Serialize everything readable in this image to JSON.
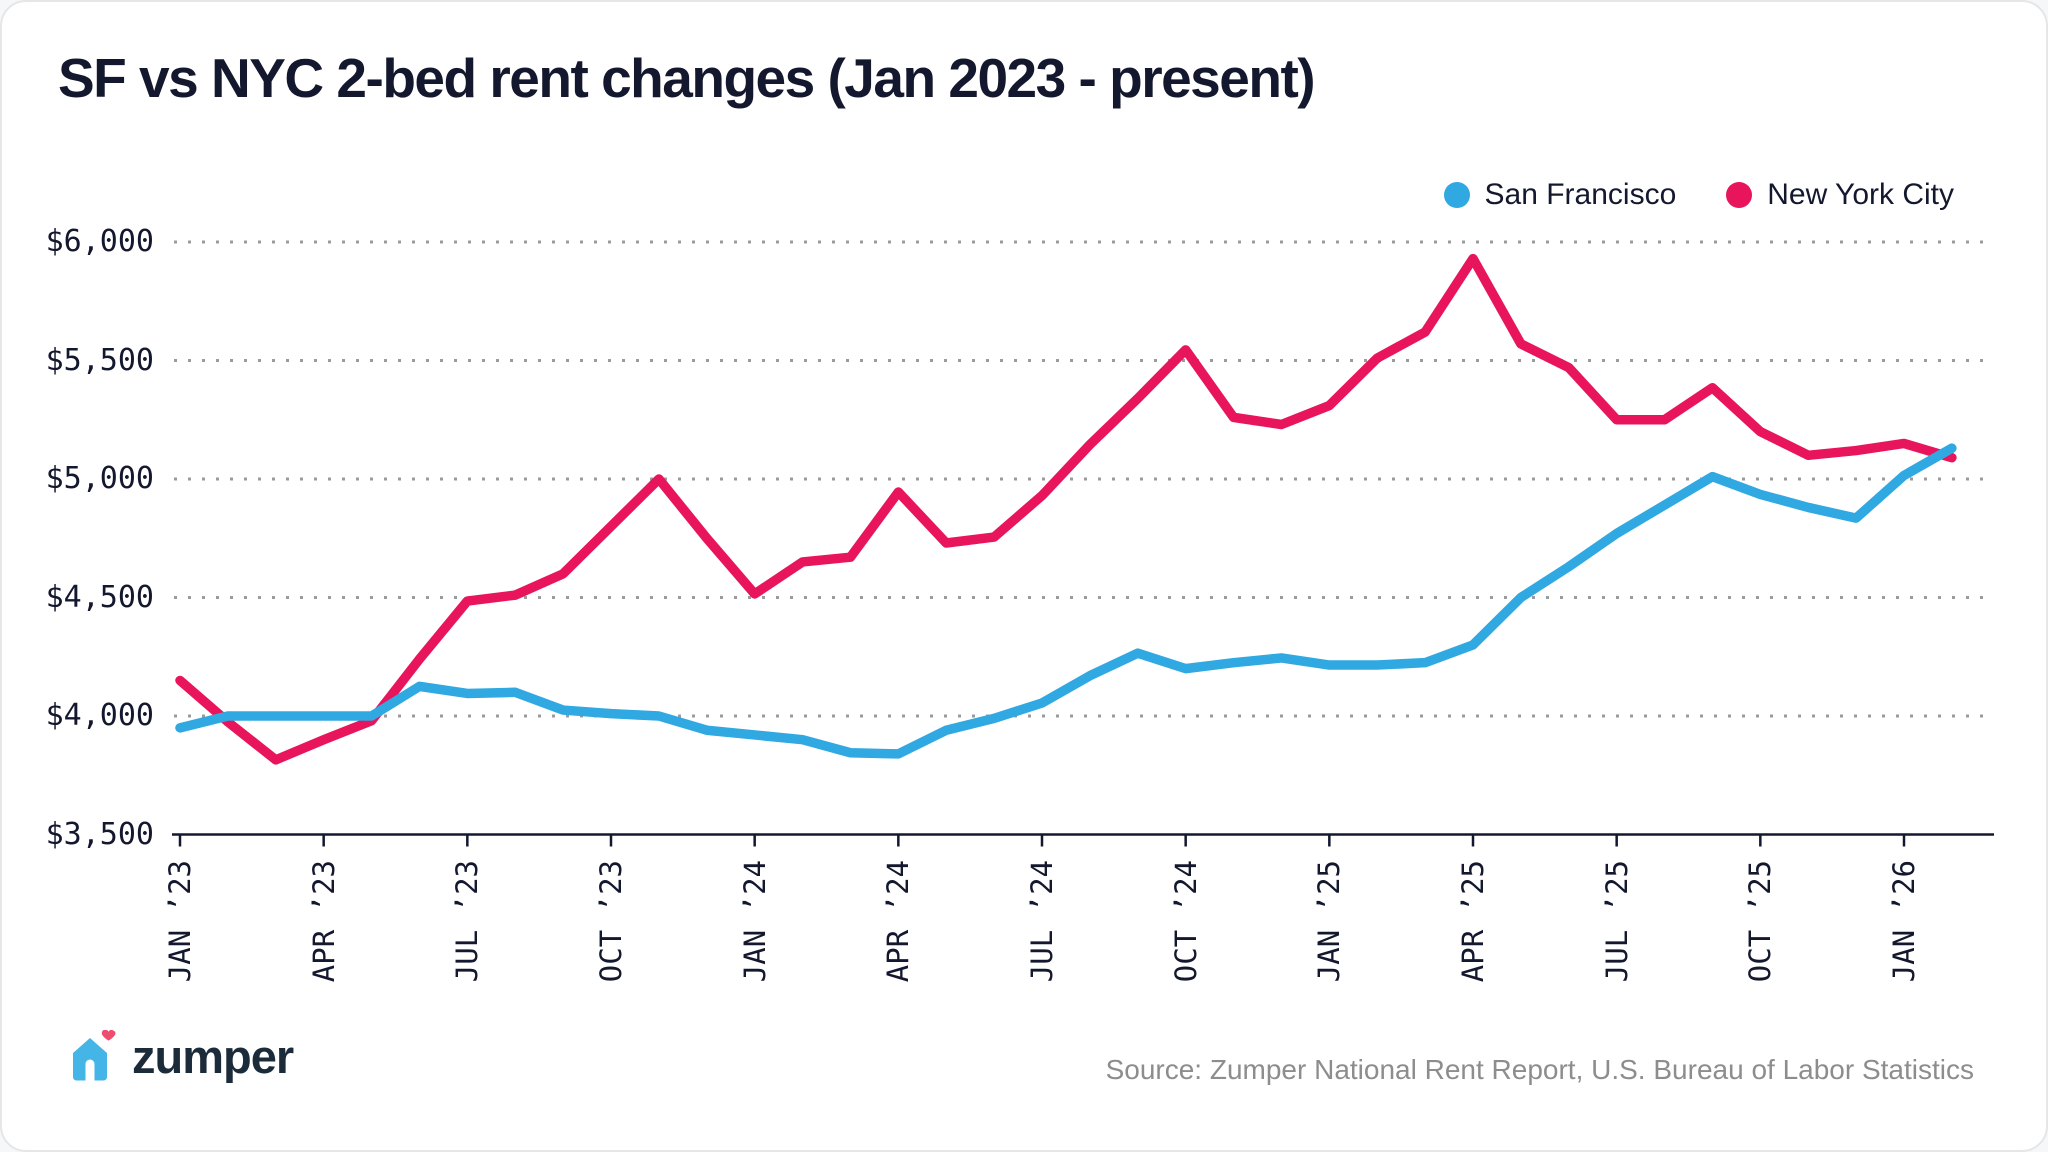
{
  "title": "SF vs NYC 2-bed rent changes (Jan 2023 - present)",
  "footer": {
    "brand": "zumper",
    "source": "Source: Zumper National Rent Report, U.S. Bureau of Labor Statistics"
  },
  "colors": {
    "san_francisco": "#30a8e1",
    "new_york_city": "#e8145c",
    "text_dark": "#14182e",
    "grid_gray": "#9b9b9b",
    "source_gray": "#8d8d8d",
    "logo_blue": "#45b5e8",
    "logo_pink": "#ee4d6e"
  },
  "chart_data": {
    "type": "line",
    "title": "SF vs NYC 2-bed rent changes (Jan 2023 - present)",
    "xlabel": "",
    "ylabel": "",
    "ylim": [
      3500,
      6000
    ],
    "grid": "dotted horizontal",
    "legend_position": "top-right",
    "x": [
      "JAN ’23",
      "FEB ’23",
      "MAR ’23",
      "APR ’23",
      "MAY ’23",
      "JUN ’23",
      "JUL ’23",
      "AUG ’23",
      "SEP ’23",
      "OCT ’23",
      "NOV ’23",
      "DEC ’23",
      "JAN ’24",
      "FEB ’24",
      "MAR ’24",
      "APR ’24",
      "MAY ’24",
      "JUN ’24",
      "JUL ’24",
      "AUG ’24",
      "SEP ’24",
      "OCT ’24",
      "NOV ’24",
      "DEC ’24",
      "JAN ’25",
      "FEB ’25",
      "MAR ’25",
      "APR ’25",
      "MAY ’25",
      "JUN ’25",
      "JUL ’25",
      "AUG ’25",
      "SEP ’25",
      "OCT ’25",
      "NOV ’25",
      "DEC ’25",
      "JAN ’26",
      "FEB ’26"
    ],
    "series": [
      {
        "name": "San Francisco",
        "color": "#30a8e1",
        "values": [
          3950,
          4000,
          4000,
          4000,
          4000,
          4125,
          4095,
          4100,
          4025,
          4010,
          4000,
          3940,
          3920,
          3900,
          3845,
          3840,
          3940,
          3990,
          4055,
          4170,
          4265,
          4200,
          4225,
          4245,
          4215,
          4215,
          4225,
          4300,
          4500,
          4630,
          4770,
          4890,
          5010,
          4935,
          4880,
          4835,
          5015,
          5130
        ]
      },
      {
        "name": "New York City",
        "color": "#e8145c",
        "values": [
          4150,
          3975,
          3815,
          3900,
          3980,
          4240,
          4485,
          4510,
          4600,
          4800,
          5000,
          4750,
          4515,
          4650,
          4670,
          4945,
          4730,
          4755,
          4930,
          5145,
          5340,
          5545,
          5260,
          5230,
          5310,
          5510,
          5620,
          5930,
          5570,
          5470,
          5250,
          5250,
          5385,
          5200,
          5100,
          5120,
          5150,
          5090
        ]
      }
    ],
    "yticks": [
      {
        "value": 3500,
        "label": "$3,500"
      },
      {
        "value": 4000,
        "label": "$4,000"
      },
      {
        "value": 4500,
        "label": "$4,500"
      },
      {
        "value": 5000,
        "label": "$5,000"
      },
      {
        "value": 5500,
        "label": "$5,500"
      },
      {
        "value": 6000,
        "label": "$6,000"
      }
    ],
    "xticks": [
      {
        "i": 0,
        "label": "JAN ’23"
      },
      {
        "i": 3,
        "label": "APR ’23"
      },
      {
        "i": 6,
        "label": "JUL ’23"
      },
      {
        "i": 9,
        "label": "OCT ’23"
      },
      {
        "i": 12,
        "label": "JAN ’24"
      },
      {
        "i": 15,
        "label": "APR ’24"
      },
      {
        "i": 18,
        "label": "JUL ’24"
      },
      {
        "i": 21,
        "label": "OCT ’24"
      },
      {
        "i": 24,
        "label": "JAN ’25"
      },
      {
        "i": 27,
        "label": "APR ’25"
      },
      {
        "i": 30,
        "label": "JUL ’25"
      },
      {
        "i": 33,
        "label": "OCT ’25"
      },
      {
        "i": 36,
        "label": "JAN ’26"
      }
    ]
  }
}
